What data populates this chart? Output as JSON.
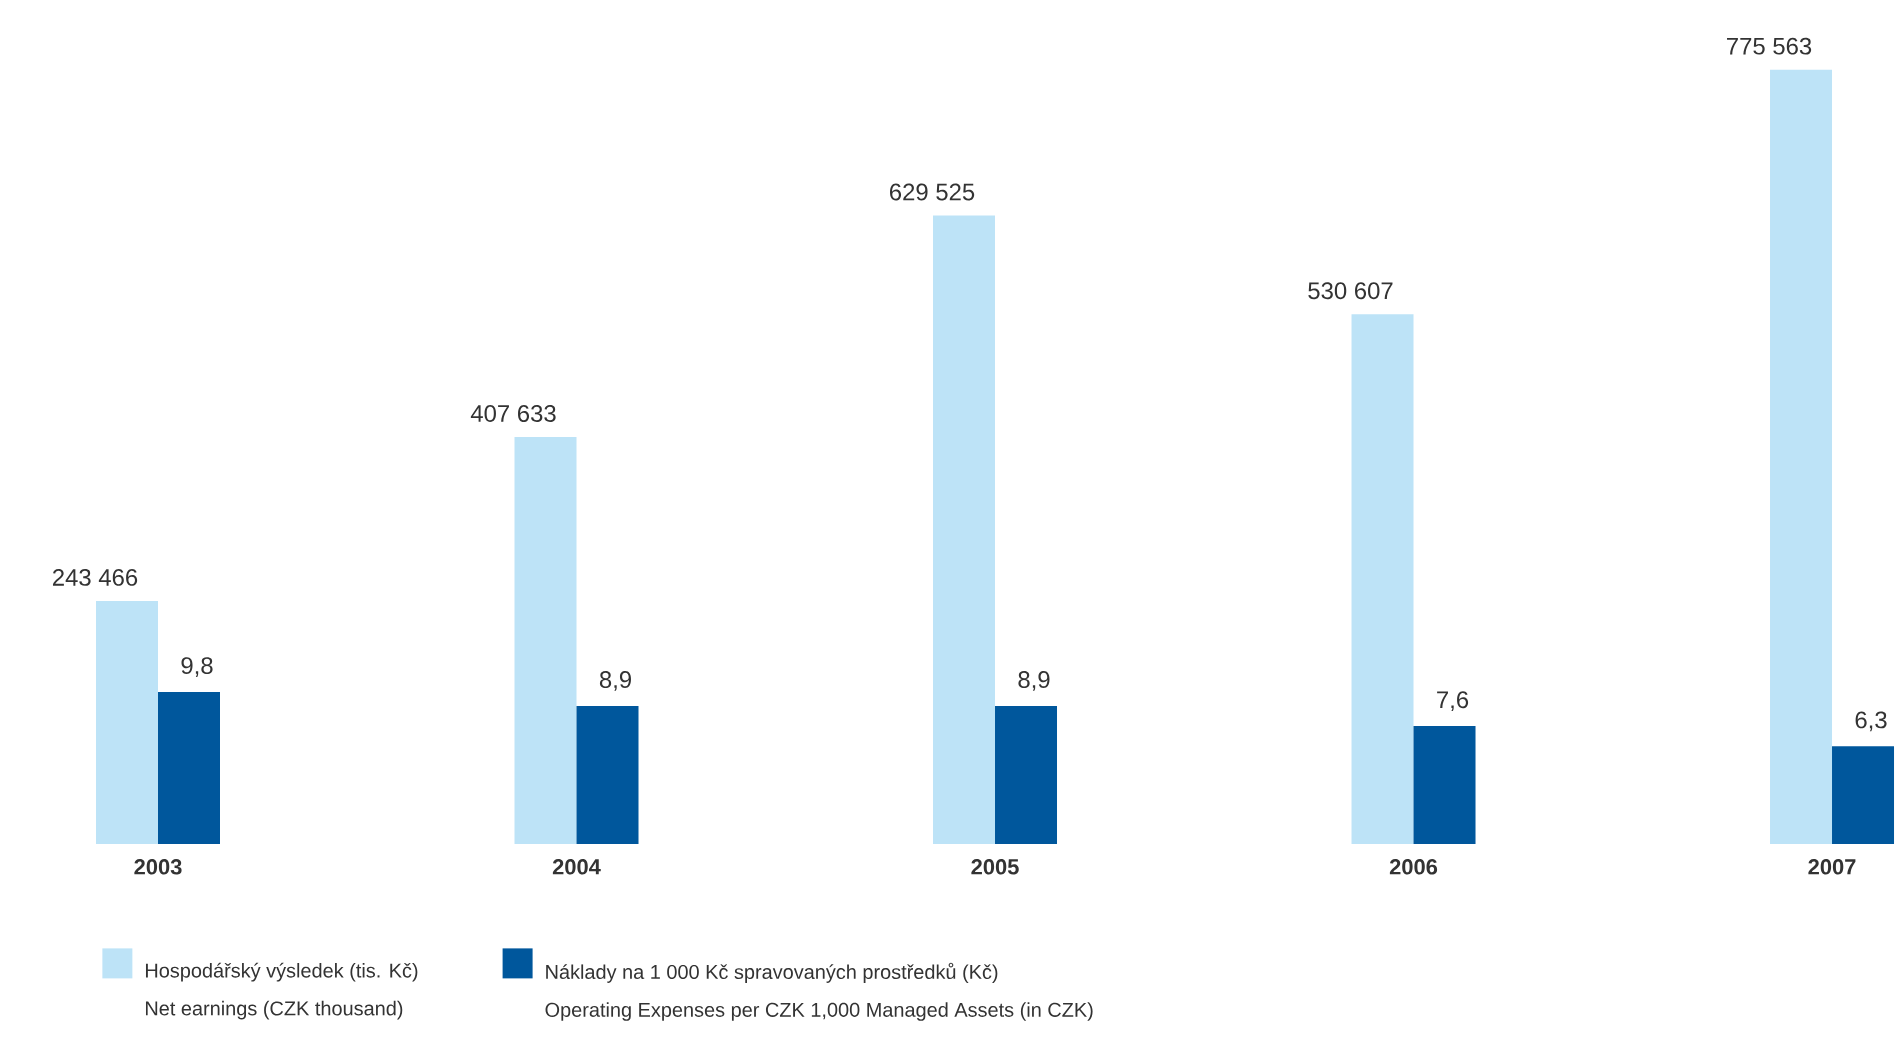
{
  "chart_data": {
    "type": "bar",
    "categories": [
      "2003",
      "2004",
      "2005",
      "2006",
      "2007"
    ],
    "series": [
      {
        "name": "Hospodářský výsledek (tis. Kč)",
        "color": "#bde3f7",
        "values": [
          243466,
          407633,
          629525,
          530607,
          775563
        ],
        "value_labels": [
          "243 466",
          "407 633",
          "629 525",
          "530 607",
          "775 563"
        ]
      },
      {
        "name": "Náklady na 1 000 Kč spravovaných prostředků (Kč)",
        "color": "#00579c",
        "axis": "y2",
        "values": [
          9.8,
          8.9,
          8.9,
          7.6,
          6.3
        ],
        "value_labels": [
          "9,8",
          "8,9",
          "8,9",
          "7,6",
          "6,3"
        ]
      }
    ],
    "annotations": [
      "Net earnings (CZK thousand)",
      "Operating Expenses per CZK 1,000 Managed Assets (in CZK)"
    ],
    "legend": "bottom"
  }
}
